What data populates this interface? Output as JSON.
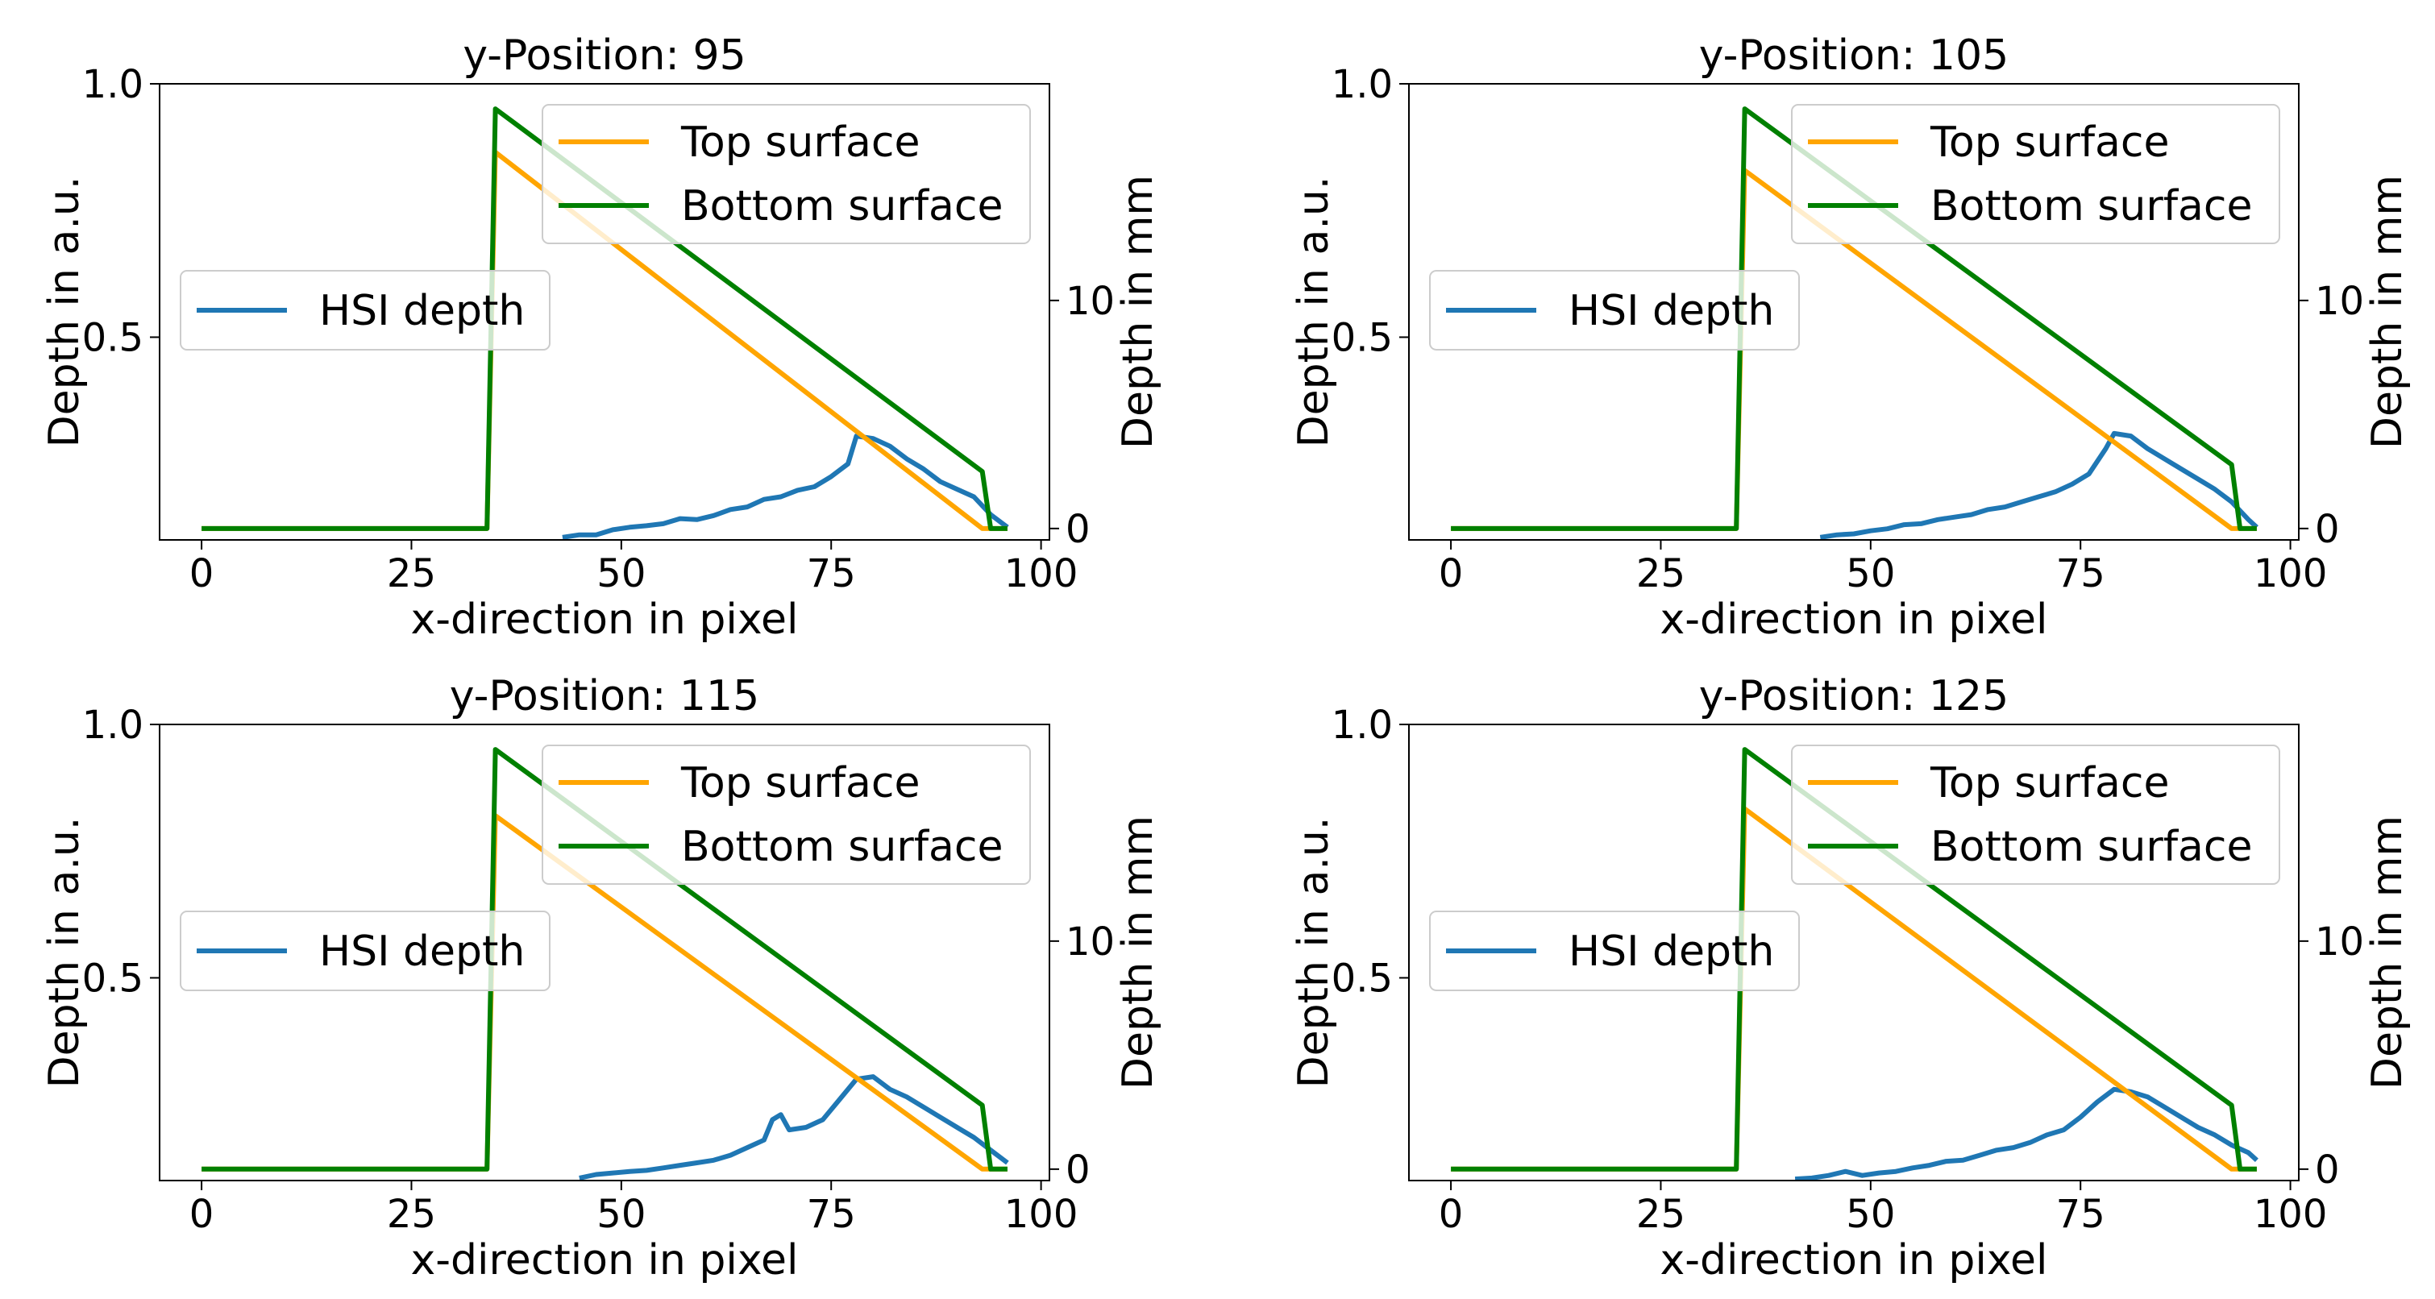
{
  "figure": {
    "background": "#ffffff"
  },
  "colors": {
    "hsi": "#1f77b4",
    "top": "#ffa500",
    "bottom": "#008000",
    "axis": "#000000",
    "legend_edge": "#cccccc"
  },
  "chart_data": [
    {
      "type": "line",
      "title": "y-Position: 95",
      "xlabel": "x-direction in pixel",
      "ylabel": "Depth in a.u.",
      "ylabel_right": "Depth in mm",
      "xlim": [
        -5,
        101
      ],
      "ylim": [
        0.1,
        1.0
      ],
      "ylim_right": [
        -0.5,
        19.5
      ],
      "xticks": [
        0,
        25,
        50,
        75,
        100
      ],
      "yticks": [
        0.5,
        1.0
      ],
      "yticks_right": [
        0,
        10
      ],
      "legend_left": [
        "HSI depth"
      ],
      "legend_right": [
        "Top surface",
        "Bottom surface"
      ],
      "series": [
        {
          "name": "HSI depth",
          "axis": "left",
          "color": "#1f77b4",
          "x": [
            43,
            45,
            47,
            49,
            51,
            53,
            55,
            57,
            59,
            61,
            63,
            65,
            67,
            69,
            71,
            73,
            75,
            77,
            78,
            80,
            82,
            84,
            86,
            88,
            90,
            92,
            94,
            96
          ],
          "y": [
            0.105,
            0.11,
            0.11,
            0.12,
            0.125,
            0.128,
            0.132,
            0.142,
            0.14,
            0.148,
            0.16,
            0.165,
            0.18,
            0.185,
            0.198,
            0.205,
            0.225,
            0.25,
            0.305,
            0.3,
            0.285,
            0.26,
            0.24,
            0.215,
            0.2,
            0.185,
            0.15,
            0.125
          ]
        },
        {
          "name": "Top surface",
          "axis": "right",
          "color": "#ffa500",
          "x": [
            0,
            34,
            35,
            93,
            96
          ],
          "y": [
            0,
            0,
            16.5,
            0,
            0
          ]
        },
        {
          "name": "Bottom surface",
          "axis": "right",
          "color": "#008000",
          "x": [
            0,
            34,
            35,
            93,
            94,
            96
          ],
          "y": [
            0,
            0,
            18.4,
            2.5,
            0,
            0
          ]
        }
      ]
    },
    {
      "type": "line",
      "title": "y-Position: 105",
      "xlabel": "x-direction in pixel",
      "ylabel": "Depth in a.u.",
      "ylabel_right": "Depth in mm",
      "xlim": [
        -5,
        101
      ],
      "ylim": [
        0.1,
        1.0
      ],
      "ylim_right": [
        -0.5,
        19.5
      ],
      "xticks": [
        0,
        25,
        50,
        75,
        100
      ],
      "yticks": [
        0.5,
        1.0
      ],
      "yticks_right": [
        0,
        10
      ],
      "legend_left": [
        "HSI depth"
      ],
      "legend_right": [
        "Top surface",
        "Bottom surface"
      ],
      "series": [
        {
          "name": "HSI depth",
          "axis": "left",
          "color": "#1f77b4",
          "x": [
            44,
            46,
            48,
            50,
            52,
            54,
            56,
            58,
            60,
            62,
            64,
            66,
            68,
            70,
            72,
            74,
            76,
            78,
            79,
            81,
            83,
            85,
            87,
            89,
            91,
            93,
            95,
            96
          ],
          "y": [
            0.105,
            0.11,
            0.112,
            0.118,
            0.122,
            0.13,
            0.132,
            0.14,
            0.145,
            0.15,
            0.16,
            0.165,
            0.175,
            0.185,
            0.195,
            0.21,
            0.23,
            0.28,
            0.31,
            0.305,
            0.28,
            0.26,
            0.24,
            0.22,
            0.2,
            0.175,
            0.14,
            0.125
          ]
        },
        {
          "name": "Top surface",
          "axis": "right",
          "color": "#ffa500",
          "x": [
            0,
            34,
            35,
            93,
            96
          ],
          "y": [
            0,
            0,
            15.7,
            0,
            0
          ]
        },
        {
          "name": "Bottom surface",
          "axis": "right",
          "color": "#008000",
          "x": [
            0,
            34,
            35,
            93,
            94,
            96
          ],
          "y": [
            0,
            0,
            18.4,
            2.8,
            0,
            0
          ]
        }
      ]
    },
    {
      "type": "line",
      "title": "y-Position: 115",
      "xlabel": "x-direction in pixel",
      "ylabel": "Depth in a.u.",
      "ylabel_right": "Depth in mm",
      "xlim": [
        -5,
        101
      ],
      "ylim": [
        0.1,
        1.0
      ],
      "ylim_right": [
        -0.5,
        19.5
      ],
      "xticks": [
        0,
        25,
        50,
        75,
        100
      ],
      "yticks": [
        0.5,
        1.0
      ],
      "yticks_right": [
        0,
        10
      ],
      "legend_left": [
        "HSI depth"
      ],
      "legend_right": [
        "Top surface",
        "Bottom surface"
      ],
      "series": [
        {
          "name": "HSI depth",
          "axis": "left",
          "color": "#1f77b4",
          "x": [
            45,
            47,
            49,
            51,
            53,
            55,
            57,
            59,
            61,
            63,
            65,
            67,
            68,
            69,
            70,
            72,
            74,
            76,
            78,
            80,
            82,
            84,
            86,
            88,
            90,
            92,
            94,
            96
          ],
          "y": [
            0.105,
            0.112,
            0.115,
            0.118,
            0.12,
            0.125,
            0.13,
            0.135,
            0.14,
            0.15,
            0.165,
            0.18,
            0.22,
            0.23,
            0.2,
            0.205,
            0.22,
            0.26,
            0.3,
            0.305,
            0.28,
            0.265,
            0.245,
            0.225,
            0.205,
            0.185,
            0.16,
            0.135
          ]
        },
        {
          "name": "Top surface",
          "axis": "right",
          "color": "#ffa500",
          "x": [
            0,
            34,
            35,
            93,
            96
          ],
          "y": [
            0,
            0,
            15.5,
            0,
            0
          ]
        },
        {
          "name": "Bottom surface",
          "axis": "right",
          "color": "#008000",
          "x": [
            0,
            34,
            35,
            93,
            94,
            96
          ],
          "y": [
            0,
            0,
            18.4,
            2.8,
            0,
            0
          ]
        }
      ]
    },
    {
      "type": "line",
      "title": "y-Position: 125",
      "xlabel": "x-direction in pixel",
      "ylabel": "Depth in a.u.",
      "ylabel_right": "Depth in mm",
      "xlim": [
        -5,
        101
      ],
      "ylim": [
        0.1,
        1.0
      ],
      "ylim_right": [
        -0.5,
        19.5
      ],
      "xticks": [
        0,
        25,
        50,
        75,
        100
      ],
      "yticks": [
        0.5,
        1.0
      ],
      "yticks_right": [
        0,
        10
      ],
      "legend_left": [
        "HSI depth"
      ],
      "legend_right": [
        "Top surface",
        "Bottom surface"
      ],
      "series": [
        {
          "name": "HSI depth",
          "axis": "left",
          "color": "#1f77b4",
          "x": [
            41,
            43,
            45,
            47,
            49,
            51,
            53,
            55,
            57,
            59,
            61,
            63,
            65,
            67,
            69,
            71,
            73,
            75,
            77,
            79,
            81,
            83,
            85,
            87,
            89,
            91,
            93,
            95,
            96
          ],
          "y": [
            0.103,
            0.105,
            0.11,
            0.118,
            0.11,
            0.115,
            0.118,
            0.125,
            0.13,
            0.138,
            0.14,
            0.15,
            0.16,
            0.165,
            0.175,
            0.19,
            0.2,
            0.225,
            0.255,
            0.28,
            0.275,
            0.265,
            0.245,
            0.225,
            0.205,
            0.19,
            0.17,
            0.155,
            0.14
          ]
        },
        {
          "name": "Top surface",
          "axis": "right",
          "color": "#ffa500",
          "x": [
            0,
            34,
            35,
            93,
            96
          ],
          "y": [
            0,
            0,
            15.8,
            0,
            0
          ]
        },
        {
          "name": "Bottom surface",
          "axis": "right",
          "color": "#008000",
          "x": [
            0,
            34,
            35,
            93,
            94,
            96
          ],
          "y": [
            0,
            0,
            18.4,
            2.8,
            0,
            0
          ]
        }
      ]
    }
  ]
}
